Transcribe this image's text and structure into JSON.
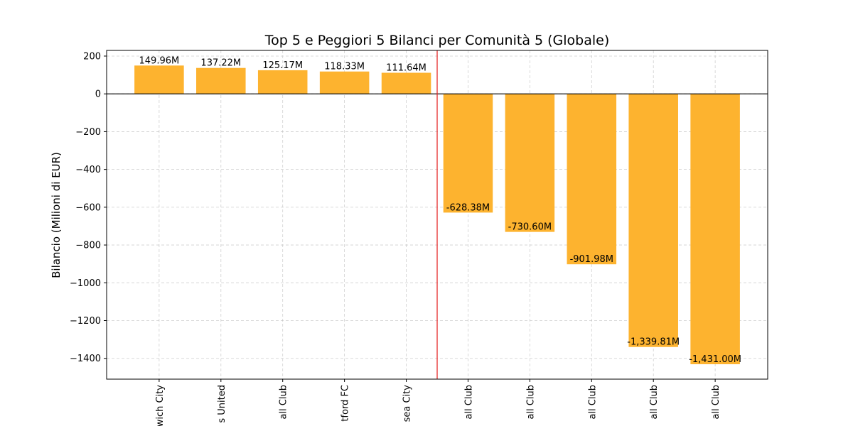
{
  "chart_data": {
    "type": "bar",
    "title": "Top 5 e Peggiori 5 Bilanci per Comunità 5 (Globale)",
    "xlabel": "",
    "ylabel": "Bilancio (Milioni di EUR)",
    "categories": [
      "wich City",
      "s United",
      "all Club",
      "tford FC",
      "sea City",
      "all Club",
      "all Club",
      "all Club",
      "all Club",
      "all Club"
    ],
    "values": [
      149.96,
      137.22,
      125.17,
      118.33,
      111.64,
      -628.38,
      -730.6,
      -901.98,
      -1339.81,
      -1431.0
    ],
    "value_labels": [
      "149.96M",
      "137.22M",
      "125.17M",
      "118.33M",
      "111.64M",
      "-628.38M",
      "-730.60M",
      "-901.98M",
      "-1,339.81M",
      "-1,431.00M"
    ],
    "ylim": [
      -1510,
      230
    ],
    "yticks": [
      200,
      0,
      -200,
      -400,
      -600,
      -800,
      -1000,
      -1200,
      -1400
    ],
    "ytick_labels": [
      "200",
      "0",
      "−200",
      "−400",
      "−600",
      "−800",
      "−1000",
      "−1200",
      "−1400"
    ],
    "grid": true,
    "bar_color": "#fdb32f",
    "zero_line_color": "#000000",
    "separator_color": "#e41a1c",
    "separator_after_index": 4
  }
}
